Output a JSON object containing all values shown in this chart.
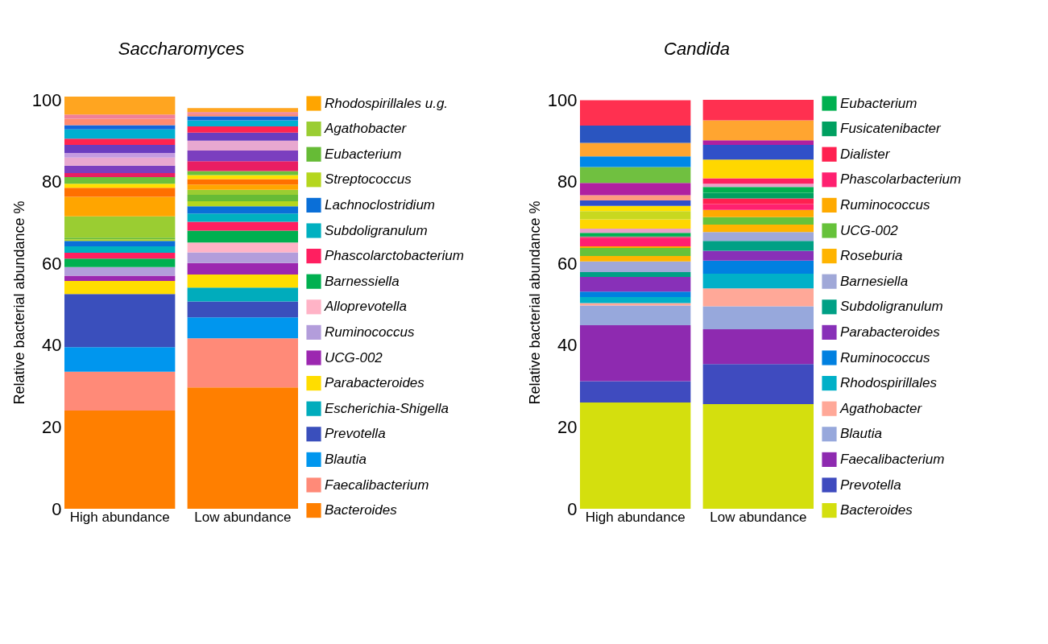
{
  "chart_data": [
    {
      "type": "bar",
      "title": "Saccharomyces",
      "ylabel": "Relative bacterial abundance %",
      "categories": [
        "High abundance",
        "Low abundance"
      ],
      "stacked": true,
      "legend": "right",
      "ylim": [
        0,
        101
      ],
      "yticks": [
        0,
        20,
        40,
        60,
        80,
        100
      ],
      "series": [
        {
          "name": "Bacteroides",
          "color": "#ff7f00",
          "values": [
            24.0,
            29.7
          ]
        },
        {
          "name": "Faecalibacterium",
          "color": "#ff8a78",
          "values": [
            9.5,
            12.0
          ]
        },
        {
          "name": "Blautia",
          "color": "#0096ee",
          "values": [
            6.0,
            5.1
          ]
        },
        {
          "name": "Prevotella",
          "color": "#3a4fbc",
          "values": [
            13.0,
            3.9
          ]
        },
        {
          "name": "Escherichia-Shigella",
          "color": "#00acbc",
          "values": [
            0,
            3.4
          ]
        },
        {
          "name": "Parabacteroides",
          "color": "#ffdd00",
          "values": [
            3.2,
            3.2
          ]
        },
        {
          "name": "UCG-002",
          "color": "#9c27b0",
          "values": [
            1.3,
            2.8
          ]
        },
        {
          "name": "Ruminococcus",
          "color": "#b39ddb",
          "values": [
            2.1,
            2.6
          ]
        },
        {
          "name": "Alloprevotella",
          "color": "#ffb3c6",
          "values": [
            0,
            2.4
          ]
        },
        {
          "name": "Barnessiella",
          "color": "#00b050",
          "values": [
            2.1,
            2.9
          ]
        },
        {
          "name": "Phascolarctobacterium",
          "color": "#ff1f60",
          "values": [
            1.4,
            2.2
          ]
        },
        {
          "name": "Subdoligranulum",
          "color": "#00b0c0",
          "values": [
            1.6,
            2.0
          ]
        },
        {
          "name": "Lachnoclostridium",
          "color": "#0a6fd8",
          "values": [
            1.3,
            1.8
          ]
        },
        {
          "name": "Streptococcus",
          "color": "#b5d61e",
          "values": [
            0.4,
            1.2
          ]
        },
        {
          "name": "Eubacterium",
          "color": "#66bb36",
          "values": [
            0.4,
            1.6
          ]
        },
        {
          "name": "Agathobacter",
          "color": "#9acd32",
          "values": [
            5.2,
            1.2
          ]
        },
        {
          "name": "Rhodospirillales u.g.",
          "color": "#ffa500",
          "values": [
            4.8,
            1.3
          ]
        },
        {
          "color": "#ff7000",
          "values": [
            2.2,
            1.3
          ]
        },
        {
          "color": "#ffe000",
          "values": [
            1.0,
            1.0
          ]
        },
        {
          "color": "#6cc03c",
          "values": [
            1.6,
            1.0
          ]
        },
        {
          "color": "#e91e63",
          "values": [
            1.0,
            2.4
          ]
        },
        {
          "color": "#7b3fbf",
          "values": [
            1.8,
            2.6
          ]
        },
        {
          "color": "#e8a8d0",
          "values": [
            2.0,
            2.4
          ]
        },
        {
          "color": "#c39be0",
          "values": [
            1.1,
            0
          ]
        },
        {
          "color": "#6a3dbf",
          "values": [
            2.0,
            2.0
          ]
        },
        {
          "color": "#ff2450",
          "values": [
            1.5,
            1.5
          ]
        },
        {
          "color": "#00b0d0",
          "values": [
            2.3,
            1.5
          ]
        },
        {
          "color": "#1166dd",
          "values": [
            1.0,
            1.0
          ]
        },
        {
          "color": "#ff8a70",
          "values": [
            1.6,
            0.5
          ]
        },
        {
          "color": "#f08098",
          "values": [
            1.0,
            0.5
          ]
        },
        {
          "color": "#ffa520",
          "values": [
            4.4,
            1.0
          ]
        }
      ]
    },
    {
      "type": "bar",
      "title": "Candida",
      "ylabel": "Relative bacterial abundance %",
      "categories": [
        "High abundance",
        "Low abundance"
      ],
      "stacked": true,
      "legend": "right",
      "ylim": [
        0,
        101
      ],
      "yticks": [
        0,
        20,
        40,
        60,
        80,
        100
      ],
      "series": [
        {
          "name": "Bacteroides",
          "color": "#d4df0e",
          "values": [
            26.0,
            25.6
          ]
        },
        {
          "name": "Prevotella",
          "color": "#3f4bbf",
          "values": [
            5.2,
            9.8
          ]
        },
        {
          "name": "Faecalibacterium",
          "color": "#8e2ab0",
          "values": [
            13.7,
            8.5
          ]
        },
        {
          "name": "Blautia",
          "color": "#97a8dc",
          "values": [
            4.8,
            5.6
          ]
        },
        {
          "name": "Agathobacter",
          "color": "#ffa898",
          "values": [
            0.6,
            4.4
          ]
        },
        {
          "name": "Rhodospirillales",
          "color": "#00b0c8",
          "values": [
            1.5,
            3.6
          ]
        },
        {
          "name": "Ruminococcus",
          "color": "#0080e0",
          "values": [
            1.3,
            3.2
          ]
        },
        {
          "name": "Parabacteroides",
          "color": "#8830b8",
          "values": [
            3.6,
            2.4
          ]
        },
        {
          "name": "Subdoligranulum",
          "color": "#00a085",
          "values": [
            1.2,
            2.4
          ]
        },
        {
          "name": "Barnesiella",
          "color": "#a0a8d8",
          "values": [
            2.6,
            2.2
          ]
        },
        {
          "name": "Roseburia",
          "color": "#ffb400",
          "values": [
            1.3,
            1.8
          ]
        },
        {
          "name": "UCG-002",
          "color": "#66c23a",
          "values": [
            2.0,
            1.8
          ]
        },
        {
          "name": "Ruminococcus",
          "color": "#ffaa00",
          "values": [
            0.4,
            1.8
          ]
        },
        {
          "name": "Phascolarbacterium",
          "color": "#ff2070",
          "values": [
            2.1,
            1.4
          ]
        },
        {
          "name": "Dialister",
          "color": "#ff2050",
          "values": [
            0.2,
            1.4
          ]
        },
        {
          "name": "Fusicatenibacter",
          "color": "#00a060",
          "values": [
            0.2,
            1.4
          ]
        },
        {
          "name": "Eubacterium",
          "color": "#00b050",
          "values": [
            0.8,
            1.4
          ]
        },
        {
          "color": "#e8a0c8",
          "values": [
            1.0,
            0.8
          ]
        },
        {
          "color": "#ff2060",
          "values": [
            0,
            1.3
          ]
        },
        {
          "color": "#ffd700",
          "values": [
            2.3,
            4.6
          ]
        },
        {
          "color": "#c8d820",
          "values": [
            2.0,
            0
          ]
        },
        {
          "color": "#ffe000",
          "values": [
            1.3,
            0
          ]
        },
        {
          "color": "#3050c8",
          "values": [
            1.3,
            3.6
          ]
        },
        {
          "color": "#ff9a80",
          "values": [
            1.3,
            0
          ]
        },
        {
          "color": "#b020a0",
          "values": [
            3.0,
            1.1
          ]
        },
        {
          "color": "#70c040",
          "values": [
            3.9,
            0
          ]
        },
        {
          "color": "#0088e8",
          "values": [
            2.6,
            0
          ]
        },
        {
          "color": "#ffa530",
          "values": [
            3.3,
            4.9
          ]
        },
        {
          "color": "#2a55c0",
          "values": [
            4.2,
            0
          ]
        },
        {
          "color": "#ff3050",
          "values": [
            6.2,
            5.0
          ]
        }
      ]
    }
  ]
}
